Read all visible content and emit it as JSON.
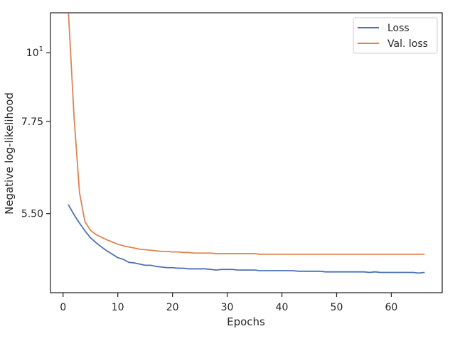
{
  "chart_data": {
    "type": "line",
    "xlabel": "Epochs",
    "ylabel": "Negative log-likelihood",
    "x_scale": "linear",
    "y_scale": "log",
    "xlim": [
      -2.3,
      69.3
    ],
    "ylim": [
      4.1,
      11.6
    ],
    "x_ticks": [
      {
        "value": 0,
        "label": "0"
      },
      {
        "value": 10,
        "label": "10"
      },
      {
        "value": 20,
        "label": "20"
      },
      {
        "value": 30,
        "label": "30"
      },
      {
        "value": 40,
        "label": "40"
      },
      {
        "value": 50,
        "label": "50"
      },
      {
        "value": 60,
        "label": "60"
      }
    ],
    "y_ticks": [
      {
        "value": 5.5,
        "label": "5.50"
      },
      {
        "value": 7.75,
        "label": "7.75"
      },
      {
        "value": 10,
        "label": "10",
        "sup": "1"
      }
    ],
    "legend_position": "top-right",
    "grid": false,
    "series": [
      {
        "name": "Loss",
        "color": "#4c72b0",
        "x": [
          1,
          2,
          3,
          4,
          5,
          6,
          7,
          8,
          9,
          10,
          11,
          12,
          13,
          14,
          15,
          16,
          17,
          18,
          19,
          20,
          21,
          22,
          23,
          24,
          25,
          26,
          27,
          28,
          29,
          30,
          31,
          32,
          33,
          34,
          35,
          36,
          37,
          38,
          39,
          40,
          41,
          42,
          43,
          44,
          45,
          46,
          47,
          48,
          49,
          50,
          51,
          52,
          53,
          54,
          55,
          56,
          57,
          58,
          59,
          60,
          61,
          62,
          63,
          64,
          65,
          66
        ],
        "values": [
          5.68,
          5.48,
          5.31,
          5.16,
          5.03,
          4.94,
          4.86,
          4.79,
          4.73,
          4.67,
          4.64,
          4.59,
          4.58,
          4.56,
          4.54,
          4.54,
          4.52,
          4.51,
          4.5,
          4.5,
          4.49,
          4.49,
          4.48,
          4.48,
          4.48,
          4.48,
          4.47,
          4.46,
          4.47,
          4.47,
          4.47,
          4.46,
          4.46,
          4.46,
          4.46,
          4.45,
          4.45,
          4.45,
          4.45,
          4.45,
          4.45,
          4.45,
          4.44,
          4.44,
          4.44,
          4.44,
          4.44,
          4.43,
          4.43,
          4.43,
          4.43,
          4.43,
          4.43,
          4.43,
          4.43,
          4.42,
          4.43,
          4.42,
          4.42,
          4.42,
          4.42,
          4.42,
          4.42,
          4.42,
          4.41,
          4.42
        ]
      },
      {
        "name": "Val. loss",
        "color": "#dd8452",
        "x": [
          1,
          2,
          3,
          4,
          5,
          6,
          7,
          8,
          9,
          10,
          11,
          12,
          13,
          14,
          15,
          16,
          17,
          18,
          19,
          20,
          21,
          22,
          23,
          24,
          25,
          26,
          27,
          28,
          29,
          30,
          31,
          32,
          33,
          34,
          35,
          36,
          37,
          38,
          39,
          40,
          41,
          42,
          43,
          44,
          45,
          46,
          47,
          48,
          49,
          50,
          51,
          52,
          53,
          54,
          55,
          56,
          57,
          58,
          59,
          60,
          61,
          62,
          63,
          64,
          65,
          66
        ],
        "values": [
          11.55,
          7.9,
          5.95,
          5.34,
          5.17,
          5.09,
          5.04,
          4.99,
          4.95,
          4.91,
          4.88,
          4.86,
          4.84,
          4.82,
          4.81,
          4.8,
          4.79,
          4.78,
          4.78,
          4.77,
          4.77,
          4.76,
          4.76,
          4.75,
          4.75,
          4.75,
          4.75,
          4.74,
          4.74,
          4.74,
          4.74,
          4.74,
          4.74,
          4.74,
          4.74,
          4.73,
          4.73,
          4.73,
          4.73,
          4.73,
          4.73,
          4.73,
          4.73,
          4.73,
          4.73,
          4.73,
          4.73,
          4.73,
          4.73,
          4.73,
          4.73,
          4.73,
          4.73,
          4.73,
          4.73,
          4.73,
          4.73,
          4.73,
          4.73,
          4.73,
          4.73,
          4.73,
          4.73,
          4.73,
          4.73,
          4.73
        ]
      }
    ]
  }
}
